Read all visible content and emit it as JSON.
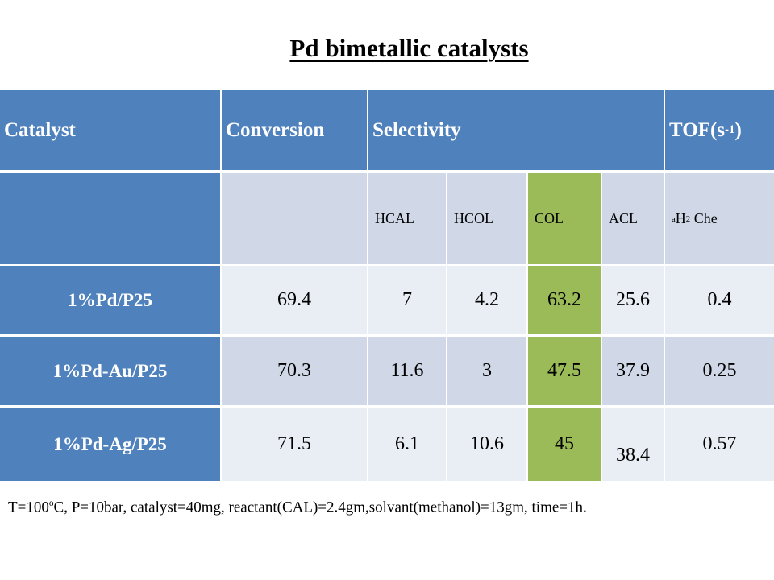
{
  "title": "Pd bimetallic catalysts",
  "header": {
    "catalyst": "Catalyst",
    "conversion": "Conversion",
    "selectivity": "Selectivity",
    "tof_base": "TOF(s",
    "tof_sup": "-1",
    "tof_close": ")"
  },
  "subheader": {
    "hcal": "HCAL",
    "hcol": "HCOL",
    "col": "COL",
    "acl": "ACL",
    "h2_sup": "a",
    "h2_base": "H",
    "h2_sub": "2",
    "h2_rest": " Che"
  },
  "rows": [
    {
      "catalyst": "1%Pd/P25",
      "conversion": "69.4",
      "hcal": "7",
      "hcol": "4.2",
      "col": "63.2",
      "acl": "25.6",
      "tof": "0.4"
    },
    {
      "catalyst": "1%Pd-Au/P25",
      "conversion": "70.3",
      "hcal": "11.6",
      "hcol": "3",
      "col": "47.5",
      "acl": "37.9",
      "tof": "0.25"
    },
    {
      "catalyst": "1%Pd-Ag/P25",
      "conversion": "71.5",
      "hcal": "6.1",
      "hcol": "10.6",
      "col": "45",
      "acl": "38.4",
      "tof": "0.57"
    }
  ],
  "footer": {
    "part1": "T=100",
    "sup": "o",
    "part2": "C, P=10bar, catalyst=40mg, reactant(CAL)=2.4gm,solvant(methanol)=13gm, time=1h."
  },
  "colors": {
    "header_blue": "#4f81bd",
    "row_light": "#e9edf4",
    "row_mid": "#d0d8e8",
    "col_green": "#9bbb59"
  }
}
